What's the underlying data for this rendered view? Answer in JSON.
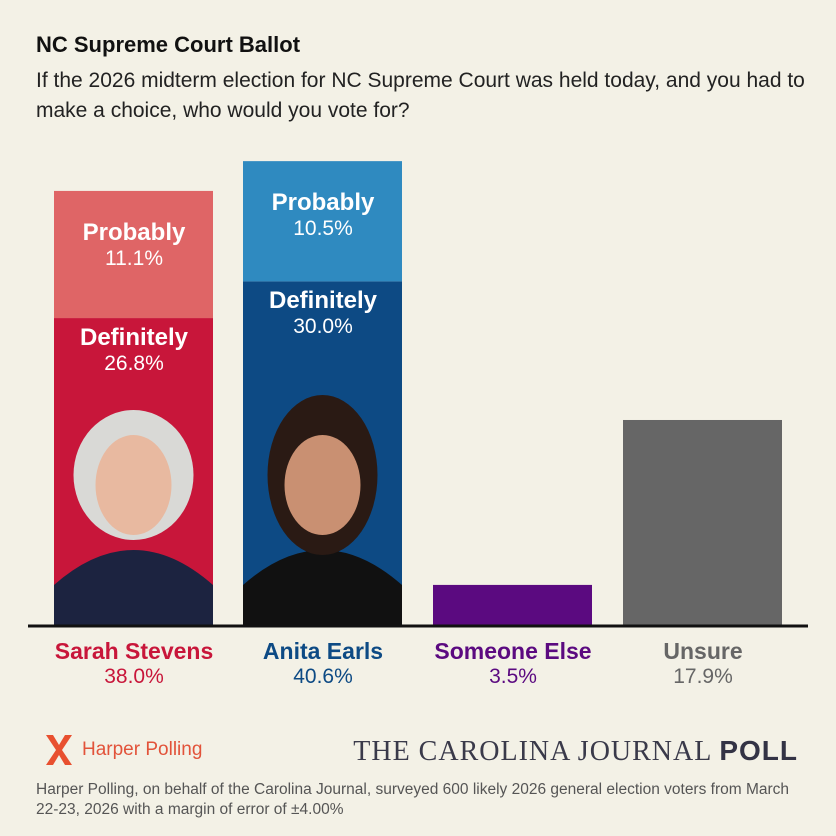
{
  "header": {
    "title": "NC Supreme Court Ballot",
    "subtitle": "If the 2026 midterm election for NC Supreme Court was held today, and you had to make a choice, who would you vote for?"
  },
  "chart_data": {
    "type": "bar",
    "stacked": true,
    "categories": [
      "Sarah Stevens",
      "Anita Earls",
      "Someone Else",
      "Unsure"
    ],
    "totals": [
      "38.0%",
      "40.6%",
      "3.5%",
      "17.9%"
    ],
    "values": [
      38.0,
      40.6,
      3.5,
      17.9
    ],
    "segments": [
      {
        "candidate": "Sarah Stevens",
        "definitely_label": "Definitely",
        "definitely": 26.8,
        "definitely_text": "26.8%",
        "probably_label": "Probably",
        "probably": 11.1,
        "probably_text": "11.1%"
      },
      {
        "candidate": "Anita Earls",
        "definitely_label": "Definitely",
        "definitely": 30.0,
        "definitely_text": "30.0%",
        "probably_label": "Probably",
        "probably": 10.5,
        "probably_text": "10.5%"
      }
    ],
    "ylim": [
      0,
      40.6
    ],
    "grid": false,
    "colors": {
      "stevens": "#c8163a",
      "stevens_light": "#df6566",
      "earls": "#0d4a84",
      "earls_light": "#2f8ac0",
      "else": "#5b0a80",
      "unsure": "#666666"
    }
  },
  "footer": {
    "pollster_logo": "Harper Polling",
    "publisher_logo": "THE CAROLINA JOURNAL",
    "publisher_logo_bold": "POLL",
    "source": "Harper Polling, on behalf of the Carolina Journal, surveyed 600 likely 2026 general election voters from March 22-23, 2026 with a margin of error of ±4.00%"
  }
}
